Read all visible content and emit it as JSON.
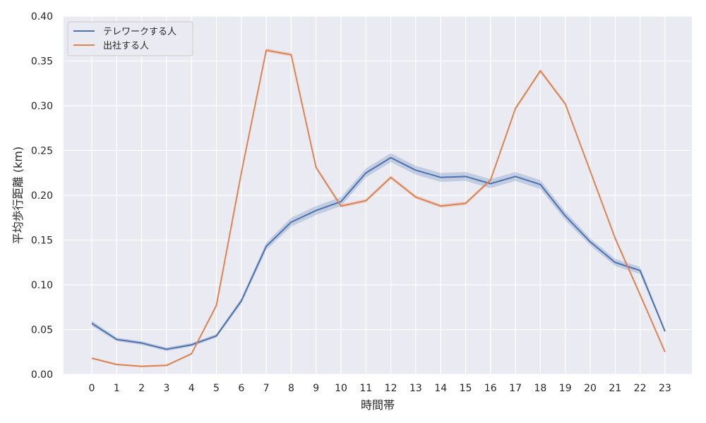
{
  "chart_data": {
    "type": "line",
    "xlabel": "時間帯",
    "ylabel": "平均歩行距離 (km)",
    "x": [
      0,
      1,
      2,
      3,
      4,
      5,
      6,
      7,
      8,
      9,
      10,
      11,
      12,
      13,
      14,
      15,
      16,
      17,
      18,
      19,
      20,
      21,
      22,
      23
    ],
    "ylim": [
      0,
      0.4
    ],
    "yticks": [
      "0.00",
      "0.05",
      "0.10",
      "0.15",
      "0.20",
      "0.25",
      "0.30",
      "0.35",
      "0.40"
    ],
    "grid": true,
    "legend_position": "top-left",
    "series": [
      {
        "name": "テレワークする人",
        "color": "#4c72b0",
        "values": [
          0.057,
          0.039,
          0.035,
          0.028,
          0.033,
          0.043,
          0.082,
          0.143,
          0.17,
          0.183,
          0.193,
          0.225,
          0.242,
          0.228,
          0.22,
          0.221,
          0.213,
          0.221,
          0.212,
          0.177,
          0.148,
          0.125,
          0.116,
          0.048
        ],
        "band": [
          0.003,
          0.002,
          0.002,
          0.002,
          0.002,
          0.002,
          0.003,
          0.004,
          0.005,
          0.005,
          0.005,
          0.005,
          0.005,
          0.005,
          0.005,
          0.005,
          0.005,
          0.005,
          0.005,
          0.005,
          0.004,
          0.004,
          0.004,
          0.002
        ]
      },
      {
        "name": "出社する人",
        "color": "#dd8452",
        "values": [
          0.018,
          0.011,
          0.009,
          0.01,
          0.023,
          0.077,
          0.225,
          0.362,
          0.357,
          0.231,
          0.188,
          0.194,
          0.22,
          0.198,
          0.188,
          0.191,
          0.217,
          0.297,
          0.339,
          0.302,
          0.227,
          0.152,
          0.089,
          0.025
        ],
        "band": [
          0.001,
          0.001,
          0.001,
          0.001,
          0.001,
          0.002,
          0.002,
          0.002,
          0.002,
          0.002,
          0.002,
          0.002,
          0.002,
          0.002,
          0.002,
          0.002,
          0.002,
          0.002,
          0.002,
          0.002,
          0.002,
          0.002,
          0.002,
          0.001
        ]
      }
    ]
  }
}
